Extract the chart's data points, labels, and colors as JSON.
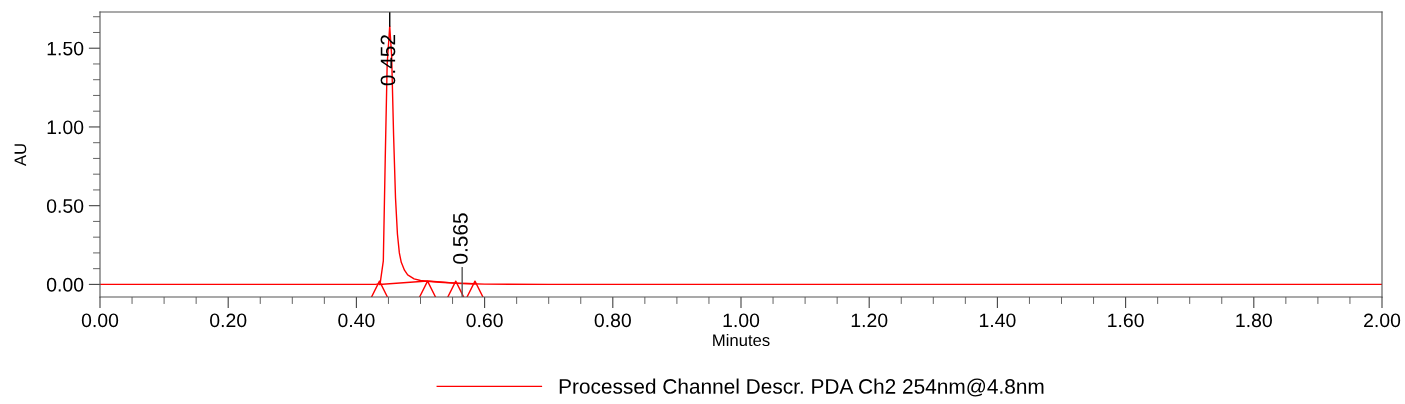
{
  "chart_data": {
    "type": "line",
    "xlabel": "Minutes",
    "ylabel": "AU",
    "xlim": [
      0,
      2.0
    ],
    "ylim": [
      -0.08,
      1.73
    ],
    "xticks": [
      {
        "value": 0,
        "label": "0.00"
      },
      {
        "value": 0.05,
        "label": null
      },
      {
        "value": 0.1,
        "label": null
      },
      {
        "value": 0.15,
        "label": null
      },
      {
        "value": 0.2,
        "label": "0.20"
      },
      {
        "value": 0.25,
        "label": null
      },
      {
        "value": 0.3,
        "label": null
      },
      {
        "value": 0.35,
        "label": null
      },
      {
        "value": 0.4,
        "label": "0.40"
      },
      {
        "value": 0.45,
        "label": null
      },
      {
        "value": 0.5,
        "label": null
      },
      {
        "value": 0.55,
        "label": null
      },
      {
        "value": 0.6,
        "label": "0.60"
      },
      {
        "value": 0.65,
        "label": null
      },
      {
        "value": 0.7,
        "label": null
      },
      {
        "value": 0.75,
        "label": null
      },
      {
        "value": 0.8,
        "label": "0.80"
      },
      {
        "value": 0.85,
        "label": null
      },
      {
        "value": 0.9,
        "label": null
      },
      {
        "value": 0.95,
        "label": null
      },
      {
        "value": 1.0,
        "label": "1.00"
      },
      {
        "value": 1.05,
        "label": null
      },
      {
        "value": 1.1,
        "label": null
      },
      {
        "value": 1.15,
        "label": null
      },
      {
        "value": 1.2,
        "label": "1.20"
      },
      {
        "value": 1.25,
        "label": null
      },
      {
        "value": 1.3,
        "label": null
      },
      {
        "value": 1.35,
        "label": null
      },
      {
        "value": 1.4,
        "label": "1.40"
      },
      {
        "value": 1.45,
        "label": null
      },
      {
        "value": 1.5,
        "label": null
      },
      {
        "value": 1.55,
        "label": null
      },
      {
        "value": 1.6,
        "label": "1.60"
      },
      {
        "value": 1.65,
        "label": null
      },
      {
        "value": 1.7,
        "label": null
      },
      {
        "value": 1.75,
        "label": null
      },
      {
        "value": 1.8,
        "label": "1.80"
      },
      {
        "value": 1.85,
        "label": null
      },
      {
        "value": 1.9,
        "label": null
      },
      {
        "value": 1.95,
        "label": null
      },
      {
        "value": 2.0,
        "label": "2.00"
      }
    ],
    "yticks": [
      {
        "value": 0,
        "label": "0.00"
      },
      {
        "value": 0.1,
        "label": null
      },
      {
        "value": 0.2,
        "label": null
      },
      {
        "value": 0.3,
        "label": null
      },
      {
        "value": 0.4,
        "label": null
      },
      {
        "value": 0.5,
        "label": "0.50"
      },
      {
        "value": 0.6,
        "label": null
      },
      {
        "value": 0.7,
        "label": null
      },
      {
        "value": 0.8,
        "label": null
      },
      {
        "value": 0.9,
        "label": null
      },
      {
        "value": 1.0,
        "label": "1.00"
      },
      {
        "value": 1.1,
        "label": null
      },
      {
        "value": 1.2,
        "label": null
      },
      {
        "value": 1.3,
        "label": null
      },
      {
        "value": 1.4,
        "label": null
      },
      {
        "value": 1.5,
        "label": "1.50"
      },
      {
        "value": 1.6,
        "label": null
      },
      {
        "value": 1.7,
        "label": null
      }
    ],
    "grid": false,
    "legend": "bottom",
    "line_style": "solid",
    "marker": "none",
    "series": [
      {
        "name": "Processed Channel Descr. PDA Ch2 254nm@4.8nm",
        "color": "#ff0000",
        "x": [
          0.0,
          0.43,
          0.437,
          0.442,
          0.445,
          0.448,
          0.452,
          0.455,
          0.458,
          0.461,
          0.464,
          0.467,
          0.47,
          0.475,
          0.48,
          0.49,
          0.5,
          0.51,
          0.53,
          0.55,
          0.565,
          0.58,
          0.6,
          0.7,
          1.0,
          2.0
        ],
        "values": [
          0.0,
          0.0,
          0.005,
          0.15,
          0.8,
          1.4,
          1.64,
          1.45,
          0.95,
          0.55,
          0.32,
          0.2,
          0.14,
          0.09,
          0.06,
          0.035,
          0.025,
          0.02,
          0.014,
          0.009,
          0.006,
          0.004,
          0.002,
          0.0,
          0.0,
          0.0
        ]
      },
      {
        "color": "#ff0000",
        "x": [
          0.436,
          0.511,
          0.555,
          0.585
        ],
        "values": [
          0.0,
          0.022,
          0.008,
          0.004
        ]
      },
      {
        "type": "scatter",
        "marker": "triangle",
        "color": "#ff0000",
        "x": [
          0.436,
          0.511,
          0.555,
          0.585
        ],
        "values": [
          -0.035,
          -0.035,
          -0.035,
          -0.035
        ]
      }
    ],
    "annotations": [
      {
        "text": "0.452",
        "x": 0.452,
        "y": 1.64
      },
      {
        "text": "0.565",
        "x": 0.565,
        "y": 0.006
      }
    ]
  }
}
